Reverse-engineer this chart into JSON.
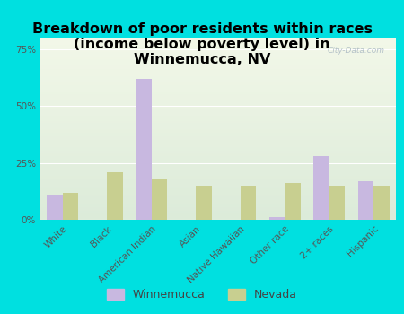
{
  "title": "Breakdown of poor residents within races\n(income below poverty level) in\nWinnemucca, NV",
  "categories": [
    "White",
    "Black",
    "American Indian",
    "Asian",
    "Native Hawaiian",
    "Other race",
    "2+ races",
    "Hispanic"
  ],
  "winnemucca": [
    11,
    0,
    62,
    0,
    0,
    1,
    28,
    17
  ],
  "nevada": [
    12,
    21,
    18,
    15,
    15,
    16,
    15,
    15
  ],
  "winnemucca_color": "#c8b8e0",
  "nevada_color": "#c8cf90",
  "background_outer": "#00e0e0",
  "background_plot_top": "#f2f7e8",
  "background_plot_bottom": "#dcebd8",
  "title_fontsize": 11.5,
  "tick_fontsize": 7.5,
  "legend_fontsize": 9,
  "bar_width": 0.35,
  "ylim": [
    0,
    80
  ],
  "yticks": [
    0,
    25,
    50,
    75
  ],
  "ytick_labels": [
    "0%",
    "25%",
    "50%",
    "75%"
  ],
  "watermark": "City-Data.com"
}
